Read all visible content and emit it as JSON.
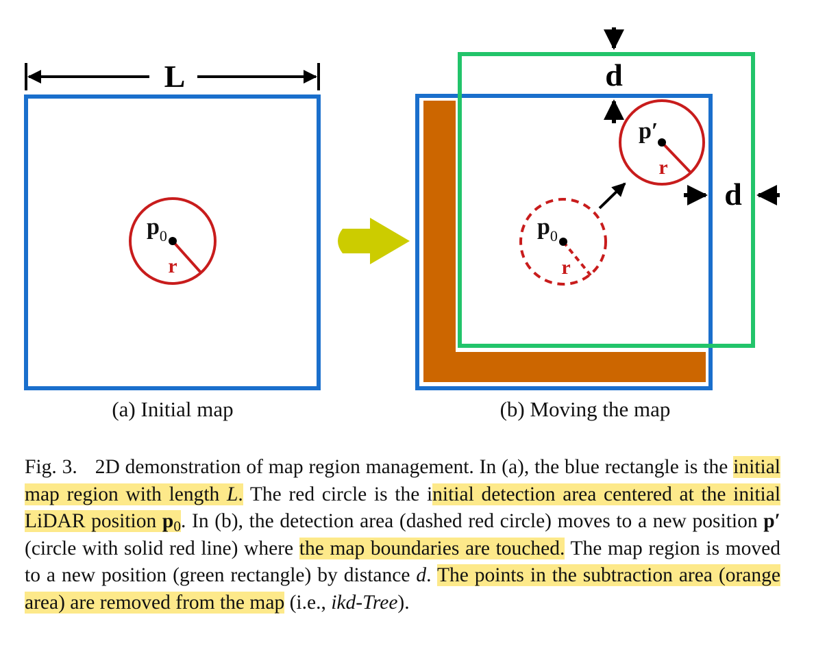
{
  "figure": {
    "panel_a": {
      "length_label": "L",
      "point_label": "p",
      "point_subscript": "0",
      "radius_label": "r",
      "subcaption": "(a) Initial map"
    },
    "panel_b": {
      "old_point_label": "p",
      "old_point_subscript": "0",
      "old_radius_label": "r",
      "new_point_label": "p′",
      "new_radius_label": "r",
      "distance_label_top": "d",
      "distance_label_right": "d",
      "subcaption": "(b) Moving the map"
    },
    "colors": {
      "map_region": "#1a6fcc",
      "moved_region": "#22c46a",
      "detection_area": "#c81c1c",
      "subtraction_area": "#cc6600",
      "transition_arrow": "#cccc00"
    }
  },
  "caption": {
    "fig_label": "Fig. 3.",
    "t1": "2D demonstration of map region management. In (a), the blue rectangle is the ",
    "h1_a": "initial map region with length ",
    "h1_L": "L",
    "h1_b": ".",
    "t2": " The red circle is the i",
    "h2_a": "nitial detection area centered at the initial LiDAR position ",
    "h2_p": "p",
    "h2_sub": "0",
    "t3": ". In (b), the detection area (dashed red circle) moves to a new position ",
    "t3_p": "p′",
    "t4": "(circle with solid red line) where ",
    "h3": "the map boundaries are touched.",
    "t5": " The map region is moved to a new position (green rectangle) by distance ",
    "t5_d": "d",
    "t6": ". ",
    "h4": "The points in the subtraction area (orange area) are removed from the map",
    "t7": " (i.e., ",
    "t7_ikd": "ikd-Tree",
    "t8": ")."
  }
}
